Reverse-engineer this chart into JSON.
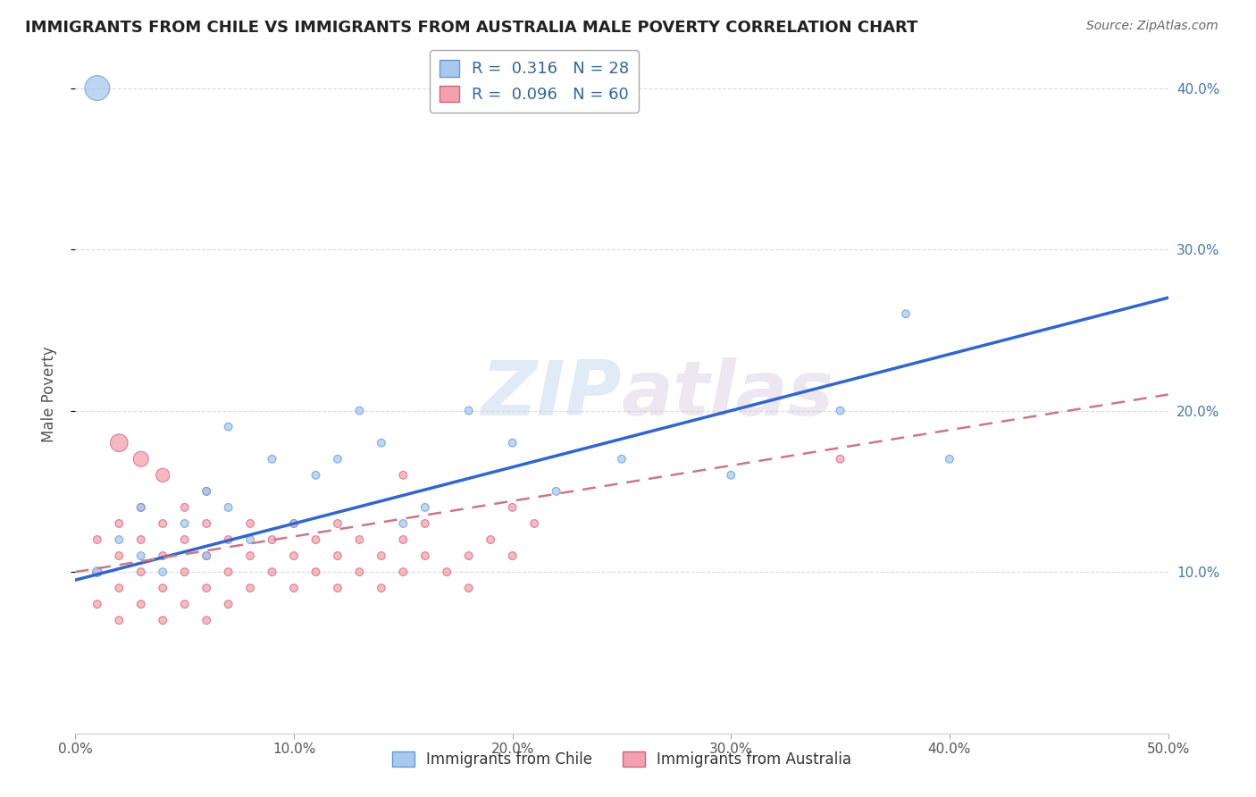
{
  "title": "IMMIGRANTS FROM CHILE VS IMMIGRANTS FROM AUSTRALIA MALE POVERTY CORRELATION CHART",
  "source": "Source: ZipAtlas.com",
  "ylabel_left": "Male Poverty",
  "xlim": [
    0.0,
    0.5
  ],
  "ylim": [
    0.0,
    0.42
  ],
  "x_ticks": [
    0.0,
    0.1,
    0.2,
    0.3,
    0.4,
    0.5
  ],
  "x_tick_labels": [
    "0.0%",
    "10.0%",
    "20.0%",
    "30.0%",
    "40.0%",
    "50.0%"
  ],
  "y_ticks_right": [
    0.1,
    0.2,
    0.3,
    0.4
  ],
  "y_tick_labels_right": [
    "10.0%",
    "20.0%",
    "30.0%",
    "40.0%"
  ],
  "grid_color": "#cccccc",
  "background_color": "#ffffff",
  "series1_color": "#a8c8f0",
  "series1_edge": "#6699cc",
  "series2_color": "#f5a0b0",
  "series2_edge": "#cc6677",
  "series1_label": "Immigrants from Chile",
  "series2_label": "Immigrants from Australia",
  "R1": 0.316,
  "N1": 28,
  "R2": 0.096,
  "N2": 60,
  "line1_x0": 0.0,
  "line1_y0": 0.095,
  "line1_x1": 0.5,
  "line1_y1": 0.27,
  "line2_x0": 0.0,
  "line2_y0": 0.1,
  "line2_x1": 0.5,
  "line2_y1": 0.21,
  "chile_x": [
    0.01,
    0.02,
    0.03,
    0.03,
    0.04,
    0.05,
    0.06,
    0.06,
    0.07,
    0.07,
    0.08,
    0.09,
    0.1,
    0.11,
    0.12,
    0.13,
    0.14,
    0.15,
    0.16,
    0.18,
    0.2,
    0.22,
    0.25,
    0.3,
    0.35,
    0.38,
    0.4,
    0.01
  ],
  "chile_y": [
    0.1,
    0.12,
    0.11,
    0.14,
    0.1,
    0.13,
    0.15,
    0.11,
    0.14,
    0.19,
    0.12,
    0.17,
    0.13,
    0.16,
    0.17,
    0.2,
    0.18,
    0.13,
    0.14,
    0.2,
    0.18,
    0.15,
    0.17,
    0.16,
    0.2,
    0.26,
    0.17,
    0.4
  ],
  "chile_sizes": [
    60,
    40,
    40,
    40,
    40,
    40,
    40,
    40,
    40,
    40,
    40,
    40,
    40,
    40,
    40,
    40,
    40,
    40,
    40,
    40,
    40,
    40,
    40,
    40,
    40,
    40,
    40,
    400
  ],
  "australia_x": [
    0.01,
    0.01,
    0.01,
    0.02,
    0.02,
    0.02,
    0.02,
    0.03,
    0.03,
    0.03,
    0.03,
    0.04,
    0.04,
    0.04,
    0.04,
    0.05,
    0.05,
    0.05,
    0.05,
    0.06,
    0.06,
    0.06,
    0.06,
    0.06,
    0.07,
    0.07,
    0.07,
    0.08,
    0.08,
    0.08,
    0.09,
    0.09,
    0.1,
    0.1,
    0.1,
    0.11,
    0.11,
    0.12,
    0.12,
    0.12,
    0.13,
    0.13,
    0.14,
    0.14,
    0.15,
    0.15,
    0.16,
    0.16,
    0.17,
    0.18,
    0.18,
    0.19,
    0.2,
    0.21,
    0.02,
    0.03,
    0.04,
    0.2,
    0.15,
    0.35
  ],
  "australia_y": [
    0.1,
    0.08,
    0.12,
    0.11,
    0.09,
    0.13,
    0.07,
    0.1,
    0.12,
    0.08,
    0.14,
    0.11,
    0.09,
    0.13,
    0.07,
    0.1,
    0.12,
    0.08,
    0.14,
    0.11,
    0.09,
    0.07,
    0.13,
    0.15,
    0.1,
    0.12,
    0.08,
    0.11,
    0.09,
    0.13,
    0.1,
    0.12,
    0.11,
    0.09,
    0.13,
    0.1,
    0.12,
    0.11,
    0.09,
    0.13,
    0.1,
    0.12,
    0.11,
    0.09,
    0.1,
    0.12,
    0.11,
    0.13,
    0.1,
    0.11,
    0.09,
    0.12,
    0.11,
    0.13,
    0.18,
    0.17,
    0.16,
    0.14,
    0.16,
    0.17
  ],
  "australia_sizes": [
    40,
    40,
    40,
    40,
    40,
    40,
    40,
    40,
    40,
    40,
    40,
    40,
    40,
    40,
    40,
    40,
    40,
    40,
    40,
    40,
    40,
    40,
    40,
    40,
    40,
    40,
    40,
    40,
    40,
    40,
    40,
    40,
    40,
    40,
    40,
    40,
    40,
    40,
    40,
    40,
    40,
    40,
    40,
    40,
    40,
    40,
    40,
    40,
    40,
    40,
    40,
    40,
    40,
    40,
    200,
    150,
    120,
    40,
    40,
    40
  ]
}
